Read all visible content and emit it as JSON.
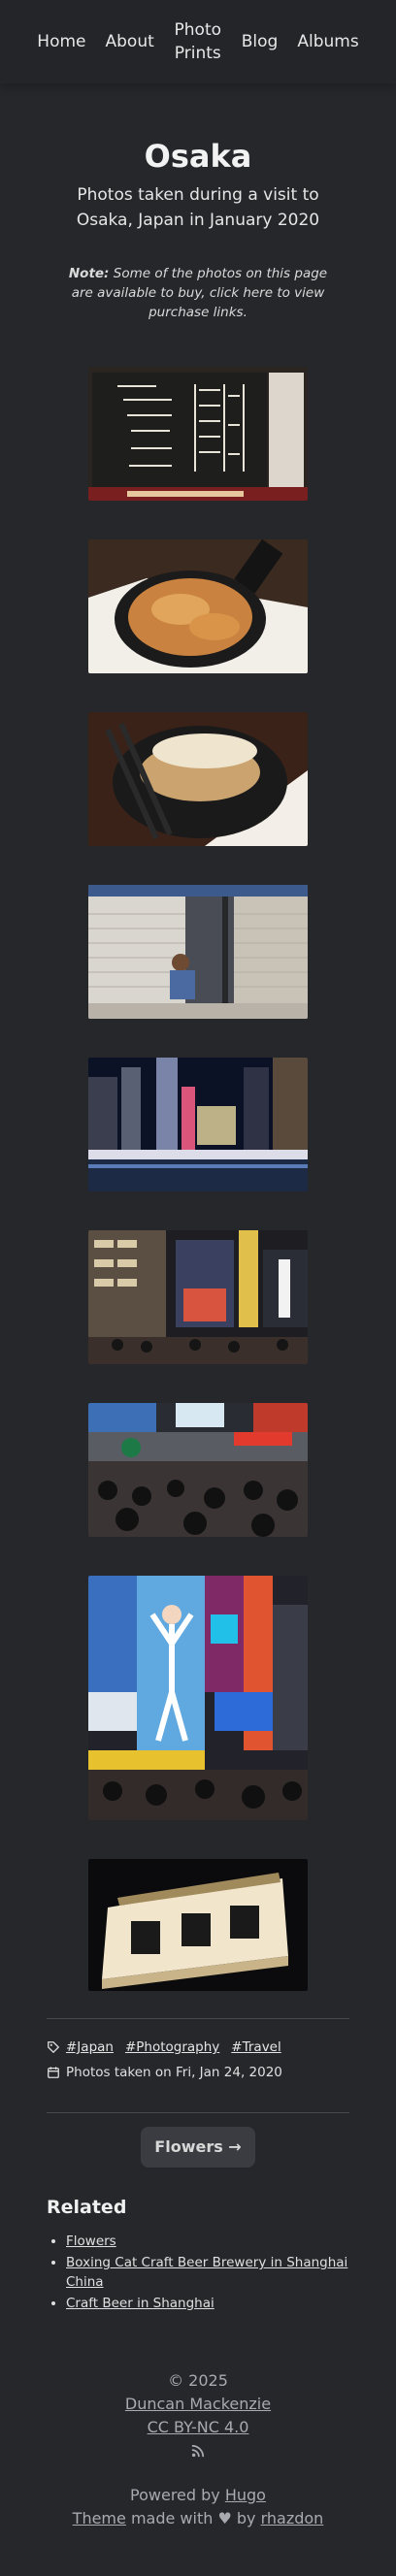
{
  "nav": {
    "items": [
      {
        "label": "Home"
      },
      {
        "label": "About"
      },
      {
        "label": "Photo Prints"
      },
      {
        "label": "Blog"
      },
      {
        "label": "Albums"
      }
    ]
  },
  "page": {
    "title": "Osaka",
    "subtitle": "Photos taken during a visit to Osaka, Japan in January 2020",
    "note_label": "Note:",
    "note_text": " Some of the photos on this page are available to buy, click here to view purchase links."
  },
  "meta": {
    "tags": [
      "#Japan",
      "#Photography",
      "#Travel"
    ],
    "date_text": "Photos taken on Fri, Jan 24, 2020"
  },
  "pagination": {
    "next_label": "Flowers →"
  },
  "related": {
    "heading": "Related",
    "items": [
      {
        "label": "Flowers"
      },
      {
        "label": "Boxing Cat Craft Beer Brewery in Shanghai China"
      },
      {
        "label": "Craft Beer in Shanghai"
      }
    ]
  },
  "footer": {
    "copyright": "© 2025",
    "author": "Duncan Mackenzie",
    "license": "CC BY-NC 4.0",
    "powered_by_prefix": "Powered by ",
    "powered_by_link": "Hugo",
    "theme_link": "Theme",
    "made_with": " made with ",
    "by": " by ",
    "theme_author": "rhazdon"
  }
}
